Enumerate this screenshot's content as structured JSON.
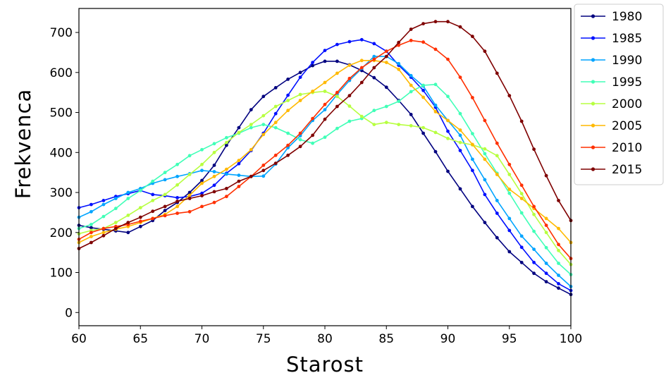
{
  "chart_data": {
    "type": "line",
    "xlabel": "Starost",
    "ylabel": "Frekvenca",
    "xlim": [
      60,
      100
    ],
    "ylim": [
      -33,
      760
    ],
    "xticks": [
      60,
      65,
      70,
      75,
      80,
      85,
      90,
      95,
      100
    ],
    "yticks": [
      0,
      100,
      200,
      300,
      400,
      500,
      600,
      700
    ],
    "grid": false,
    "legend_position": "outside-right-top",
    "x": [
      60,
      61,
      62,
      63,
      64,
      65,
      66,
      67,
      68,
      69,
      70,
      71,
      72,
      73,
      74,
      75,
      76,
      77,
      78,
      79,
      80,
      81,
      82,
      83,
      84,
      85,
      86,
      87,
      88,
      89,
      90,
      91,
      92,
      93,
      94,
      95,
      96,
      97,
      98,
      99,
      100
    ],
    "series": [
      {
        "name": "1980",
        "color": "#00007f",
        "values": [
          218,
          212,
          208,
          204,
          200,
          215,
          230,
          255,
          275,
          300,
          330,
          368,
          418,
          462,
          507,
          540,
          562,
          583,
          600,
          617,
          628,
          628,
          619,
          605,
          587,
          563,
          530,
          495,
          448,
          402,
          353,
          309,
          265,
          225,
          187,
          152,
          125,
          98,
          77,
          61,
          45
        ]
      },
      {
        "name": "1985",
        "color": "#0010ff",
        "values": [
          262,
          270,
          280,
          290,
          297,
          305,
          295,
          292,
          287,
          290,
          298,
          318,
          348,
          372,
          405,
          448,
          497,
          543,
          588,
          625,
          655,
          670,
          677,
          682,
          672,
          653,
          618,
          588,
          555,
          513,
          453,
          405,
          355,
          295,
          248,
          205,
          163,
          125,
          98,
          72,
          55
        ]
      },
      {
        "name": "1990",
        "color": "#00a4ff",
        "values": [
          238,
          252,
          270,
          285,
          300,
          310,
          323,
          332,
          340,
          347,
          355,
          352,
          346,
          343,
          340,
          341,
          371,
          412,
          442,
          480,
          507,
          545,
          580,
          610,
          640,
          640,
          622,
          592,
          566,
          518,
          480,
          443,
          383,
          332,
          280,
          235,
          191,
          158,
          123,
          93,
          65
        ]
      },
      {
        "name": "1995",
        "color": "#40ffb7",
        "values": [
          210,
          220,
          240,
          260,
          285,
          305,
          328,
          350,
          370,
          392,
          407,
          422,
          437,
          448,
          462,
          470,
          462,
          448,
          432,
          423,
          438,
          460,
          478,
          485,
          505,
          515,
          528,
          552,
          568,
          570,
          540,
          497,
          447,
          397,
          348,
          298,
          249,
          203,
          162,
          123,
          95
        ]
      },
      {
        "name": "2000",
        "color": "#b7ff40",
        "values": [
          197,
          205,
          210,
          225,
          243,
          262,
          280,
          295,
          319,
          345,
          370,
          400,
          425,
          450,
          470,
          492,
          515,
          530,
          545,
          550,
          553,
          540,
          516,
          490,
          470,
          475,
          470,
          467,
          462,
          450,
          435,
          425,
          419,
          409,
          392,
          345,
          297,
          245,
          200,
          155,
          120
        ]
      },
      {
        "name": "2005",
        "color": "#ffb900",
        "values": [
          175,
          190,
          200,
          208,
          215,
          225,
          235,
          245,
          265,
          293,
          323,
          340,
          358,
          380,
          407,
          445,
          475,
          505,
          530,
          553,
          575,
          598,
          618,
          630,
          630,
          625,
          608,
          568,
          538,
          502,
          480,
          456,
          420,
          383,
          345,
          308,
          285,
          260,
          235,
          210,
          175
        ]
      },
      {
        "name": "2010",
        "color": "#ff3000",
        "values": [
          183,
          200,
          210,
          215,
          220,
          228,
          235,
          242,
          248,
          252,
          265,
          275,
          290,
          315,
          340,
          368,
          393,
          418,
          448,
          485,
          520,
          550,
          585,
          612,
          633,
          653,
          668,
          680,
          676,
          658,
          633,
          588,
          537,
          480,
          423,
          370,
          318,
          265,
          218,
          170,
          135
        ]
      },
      {
        "name": "2015",
        "color": "#7f0000",
        "values": [
          160,
          175,
          192,
          210,
          225,
          238,
          253,
          265,
          278,
          285,
          292,
          302,
          310,
          328,
          340,
          355,
          373,
          393,
          415,
          443,
          483,
          515,
          542,
          575,
          612,
          640,
          675,
          708,
          722,
          727,
          727,
          714,
          690,
          653,
          598,
          542,
          478,
          408,
          342,
          280,
          230
        ]
      }
    ]
  }
}
